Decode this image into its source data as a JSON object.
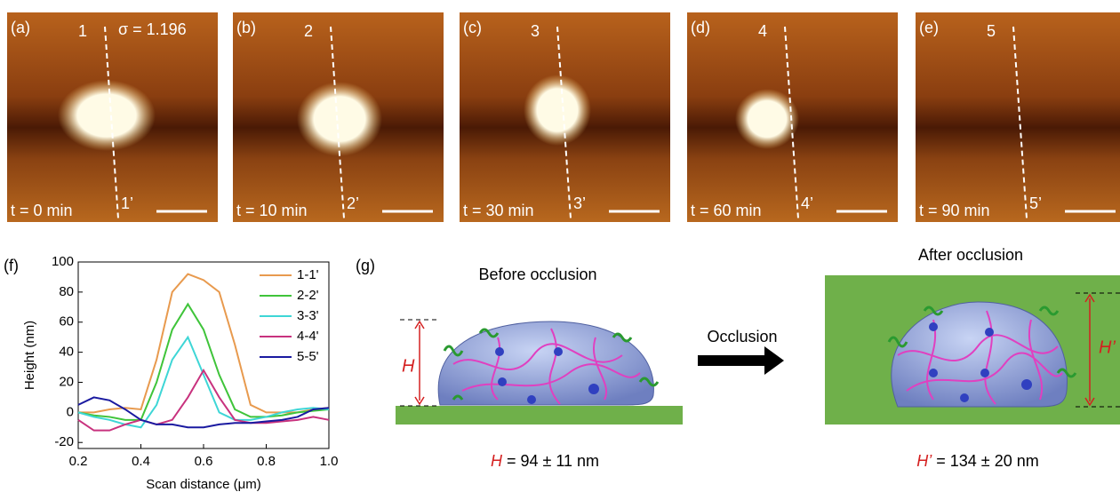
{
  "panels": [
    {
      "label": "(a)",
      "line_start": "1",
      "line_end": "1’",
      "time": "t = 0 min",
      "sigma": "σ = 1.196"
    },
    {
      "label": "(b)",
      "line_start": "2",
      "line_end": "2’",
      "time": "t = 10 min"
    },
    {
      "label": "(c)",
      "line_start": "3",
      "line_end": "3’",
      "time": "t = 30 min"
    },
    {
      "label": "(d)",
      "line_start": "4",
      "line_end": "4’",
      "time": "t = 60 min"
    },
    {
      "label": "(e)",
      "line_start": "5",
      "line_end": "5’",
      "time": "t = 90 min"
    }
  ],
  "chart_data": {
    "type": "line",
    "panel_label": "(f)",
    "xlabel": "Scan distance (μm)",
    "ylabel": "Height (nm)",
    "xlim": [
      0.2,
      1
    ],
    "ylim": [
      -24,
      100
    ],
    "xticks": [
      0.2,
      0.4,
      0.6,
      0.8,
      {
        "value": 1,
        "label": "1.0"
      }
    ],
    "yticks": [
      -20,
      0,
      20,
      40,
      60,
      80,
      100
    ],
    "x": [
      0.2,
      0.25,
      0.3,
      0.35,
      0.4,
      0.45,
      0.5,
      0.55,
      0.6,
      0.65,
      0.7,
      0.75,
      0.8,
      0.85,
      0.9,
      0.95,
      1
    ],
    "series": [
      {
        "name": "1-1'",
        "color": "#e89a4e",
        "values": [
          0,
          0,
          2,
          3,
          2,
          35,
          80,
          92,
          88,
          80,
          45,
          5,
          0,
          0,
          0,
          2,
          3
        ]
      },
      {
        "name": "2-2'",
        "color": "#3fc43a",
        "values": [
          0,
          -2,
          -3,
          -5,
          -5,
          20,
          55,
          72,
          55,
          25,
          2,
          -3,
          -3,
          -2,
          0,
          1,
          2
        ]
      },
      {
        "name": "3-3'",
        "color": "#3ed6d6",
        "values": [
          0,
          -3,
          -5,
          -8,
          -10,
          5,
          35,
          50,
          25,
          0,
          -5,
          -5,
          -3,
          0,
          2,
          3,
          2
        ]
      },
      {
        "name": "4-4'",
        "color": "#c8327e",
        "values": [
          -5,
          -12,
          -12,
          -8,
          -5,
          -8,
          -5,
          10,
          28,
          10,
          -5,
          -7,
          -7,
          -6,
          -5,
          -3,
          -5
        ]
      },
      {
        "name": "5-5'",
        "color": "#1a1aa0",
        "values": [
          5,
          10,
          8,
          2,
          -5,
          -8,
          -8,
          -10,
          -10,
          -8,
          -7,
          -7,
          -6,
          -5,
          -3,
          2,
          3
        ]
      }
    ]
  },
  "diagram": {
    "label": "(g)",
    "before_title": "Before occlusion",
    "after_title": "After occlusion",
    "arrow_label": "Occlusion",
    "before_symbol": "H",
    "after_symbol": "H’",
    "before_caption": {
      "symbol": "H",
      "text": "= 94 ± 11 nm"
    },
    "after_caption": {
      "symbol": "H’",
      "text": "= 134 ± 20 nm"
    }
  }
}
